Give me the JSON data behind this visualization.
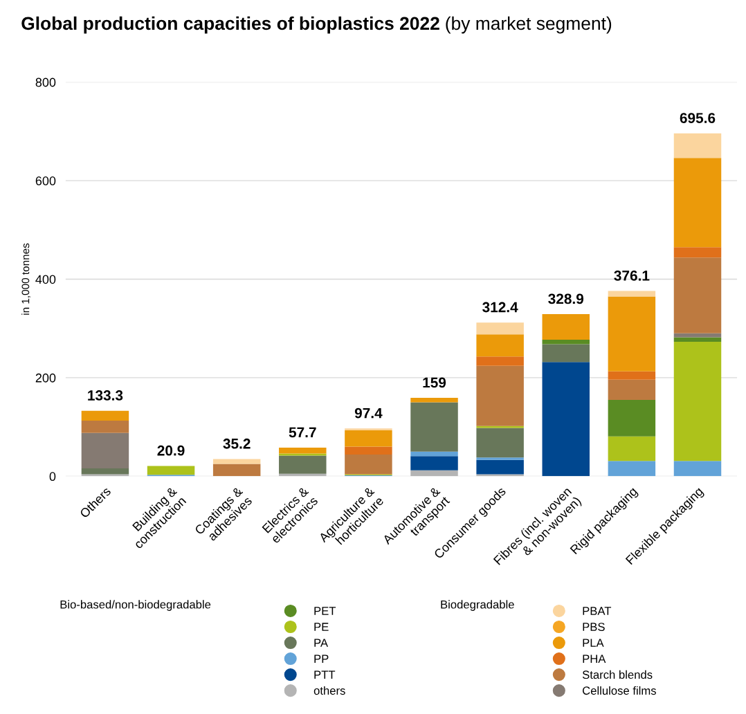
{
  "chart_data": {
    "type": "bar",
    "stacked": true,
    "title": "Global production capacities of bioplastics 2022",
    "subtitle": "(by market segment)",
    "ylabel": "in 1,000 tonnes",
    "categories": [
      "Others",
      "Building &\nconstruction",
      "Coatings &\nadhesives",
      "Electrics &\nelectronics",
      "Agriculture &\nhorticulture",
      "Automotive &\ntransport",
      "Consumer goods",
      "Fibres (incl. woven\n& non-woven)",
      "Rigid packaging",
      "Flexible packaging"
    ],
    "series": [
      {
        "name": "others",
        "color": "#b4b4b4",
        "values": [
          4,
          0,
          0,
          5,
          0,
          12,
          4,
          0,
          0,
          0
        ]
      },
      {
        "name": "PTT",
        "color": "#00478f",
        "values": [
          0,
          0,
          0,
          0,
          0,
          29,
          29,
          232,
          0,
          0
        ]
      },
      {
        "name": "PP",
        "color": "#62a3d8",
        "values": [
          0,
          3,
          0,
          0,
          2,
          9,
          5,
          0,
          31,
          31
        ]
      },
      {
        "name": "PA",
        "color": "#68775a",
        "values": [
          12,
          0,
          0,
          37,
          0,
          100,
          60,
          36,
          0,
          0
        ]
      },
      {
        "name": "PE",
        "color": "#adc21b",
        "values": [
          0,
          18,
          0,
          4,
          2,
          0,
          4,
          0,
          50,
          242
        ]
      },
      {
        "name": "PET",
        "color": "#5a8c23",
        "values": [
          0,
          0,
          0,
          0,
          0,
          0,
          0,
          9,
          74,
          9
        ]
      },
      {
        "name": "Cellulose films",
        "color": "#857a72",
        "values": [
          72,
          0,
          0,
          0,
          0,
          0,
          0,
          0,
          0,
          8
        ]
      },
      {
        "name": "Starch blends",
        "color": "#bd7a40",
        "values": [
          25,
          0,
          25,
          0,
          40,
          0,
          122,
          0,
          41,
          154
        ]
      },
      {
        "name": "PHA",
        "color": "#e0701a",
        "values": [
          0,
          0,
          0,
          0,
          16,
          0,
          19,
          0,
          17,
          21
        ]
      },
      {
        "name": "PLA",
        "color": "#eb9a0a",
        "values": [
          20,
          0,
          0,
          12,
          33,
          9,
          45,
          52,
          152,
          181
        ]
      },
      {
        "name": "PBS",
        "color": "#f5a623",
        "values": [
          0,
          0,
          0,
          0,
          0,
          0,
          0,
          0,
          0,
          0
        ]
      },
      {
        "name": "PBAT",
        "color": "#fbd59e",
        "values": [
          0,
          0,
          10,
          0,
          4,
          0,
          24,
          0,
          11,
          50
        ]
      }
    ],
    "totals": [
      "133.3",
      "20.9",
      "35.2",
      "57.7",
      "97.4",
      "159",
      "312.4",
      "328.9",
      "376.1",
      "695.6"
    ],
    "annotations": [
      "Bio-based/non-biodegradable",
      "Biodegradable"
    ],
    "ylim": [
      0,
      800
    ],
    "yticks": [
      0,
      200,
      400,
      600,
      800
    ],
    "grid": "y",
    "legend": "bottom",
    "marker": "circle"
  }
}
